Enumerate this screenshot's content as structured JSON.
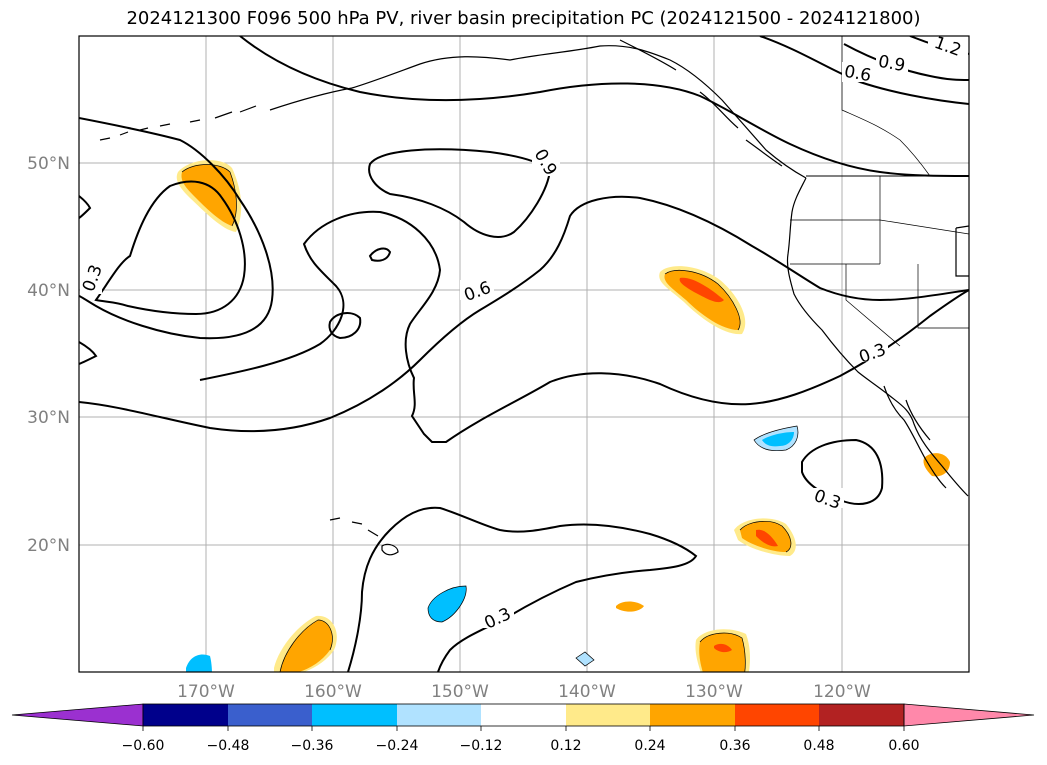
{
  "title": "2024121300 F096 500 hPa PV, river basin precipitation PC (2024121500 - 2024121800)",
  "lat_labels": [
    "50°N",
    "40°N",
    "30°N",
    "20°N"
  ],
  "lon_labels": [
    "170°W",
    "160°W",
    "150°W",
    "140°W",
    "130°W",
    "120°W"
  ],
  "contour_labels": [
    "0.9",
    "0.6",
    "0.3",
    "0.6",
    "0.9",
    "0.3",
    "0.3",
    "0.3",
    "1.2"
  ],
  "colorbar": {
    "tick_labels": [
      "−0.60",
      "−0.48",
      "−0.36",
      "−0.24",
      "−0.12",
      "0.12",
      "0.24",
      "0.36",
      "0.48",
      "0.60"
    ],
    "colors": [
      "#9b30d0",
      "#00008b",
      "#3a5fcd",
      "#00bfff",
      "#b0e2ff",
      "#ffffff",
      "#ffea8a",
      "#ffa500",
      "#ff4500",
      "#b22222",
      "#ff88aa"
    ]
  },
  "colors": {
    "orange": "#ffa500",
    "red_orange": "#ff4500",
    "yellow": "#ffea8a",
    "sky": "#00bfff",
    "grid": "#b0b0b0"
  }
}
